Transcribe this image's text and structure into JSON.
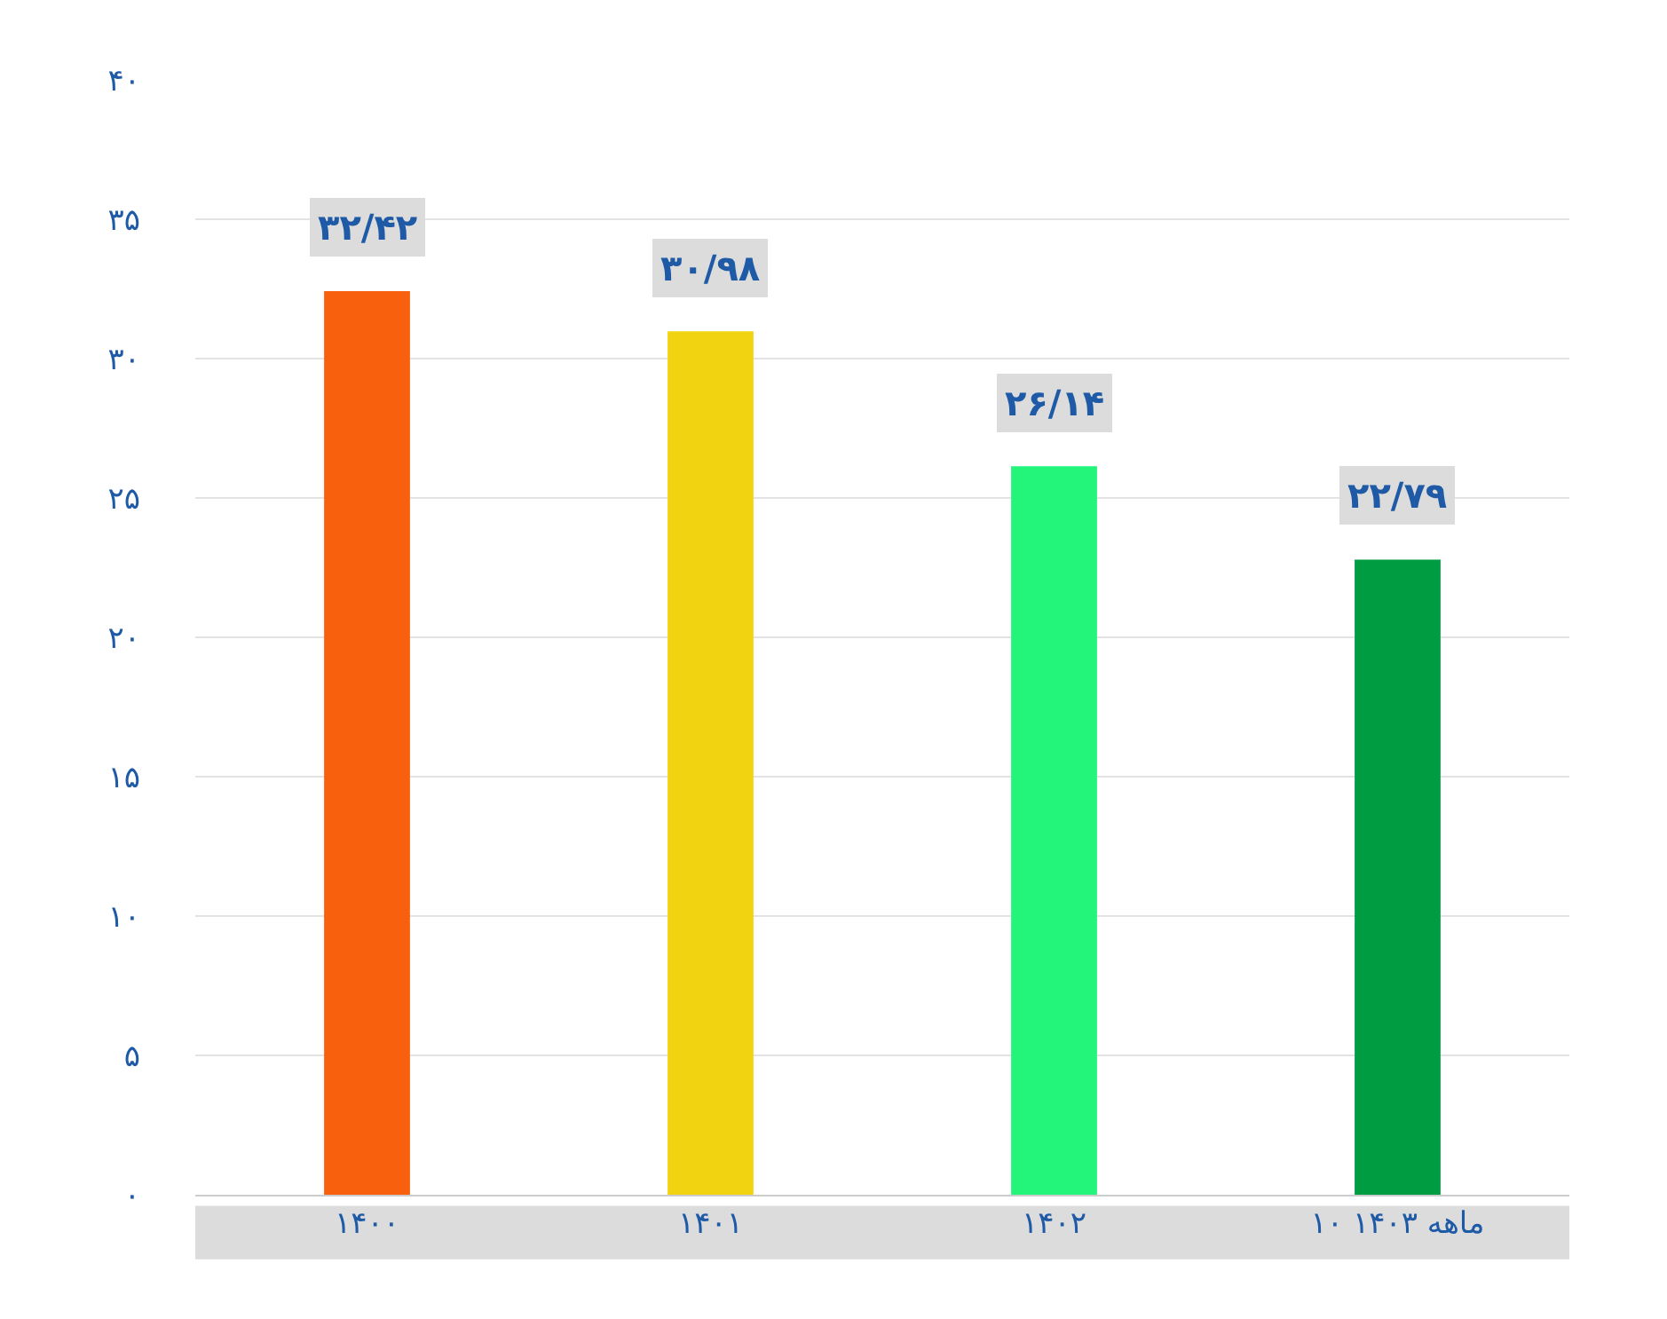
{
  "chart_data": {
    "type": "bar",
    "categories": [
      "۱۴۰۰",
      "۱۴۰۱",
      "۱۴۰۲",
      "۱۰ ماهه ۱۴۰۳"
    ],
    "values": [
      32.42,
      30.98,
      26.14,
      22.79
    ],
    "colors": [
      "#f8600e",
      "#f2d312",
      "#22f57a",
      "#009c42"
    ],
    "value_labels": [
      "۳۲/۴۲",
      "۳۰/۹۸",
      "۲۶/۱۴",
      "۲۲/۷۹"
    ],
    "ylim": [
      0,
      40
    ],
    "yticks": [
      {
        "value": 0,
        "label": "۰"
      },
      {
        "value": 5,
        "label": "۵"
      },
      {
        "value": 10,
        "label": "۱۰"
      },
      {
        "value": 15,
        "label": "۱۵"
      },
      {
        "value": 20,
        "label": "۲۰"
      },
      {
        "value": 25,
        "label": "۲۵"
      },
      {
        "value": 30,
        "label": "۳۰"
      },
      {
        "value": 35,
        "label": "۳۵"
      },
      {
        "value": 40,
        "label": "۴۰"
      }
    ],
    "grid": "y"
  }
}
